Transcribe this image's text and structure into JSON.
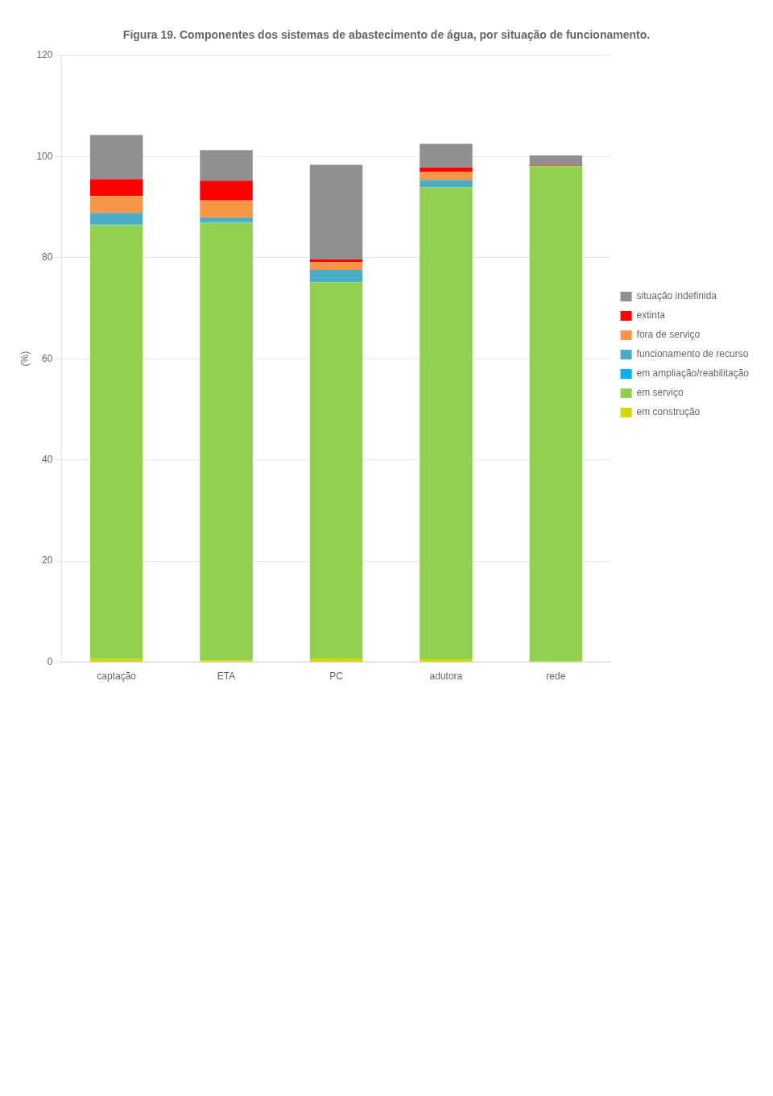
{
  "chart_data": {
    "type": "bar",
    "title": "Figura 19. Componentes dos sistemas de abastecimento de água, por situação de funcionamento.",
    "y_label": "(%)",
    "categories": [
      "captação",
      "ETA",
      "PC",
      "adutora",
      "rede"
    ],
    "series": [
      {
        "name": "em construção",
        "color": "#d4d800",
        "values": [
          0.627,
          0.356,
          0.733,
          0.573,
          0.135
        ]
      },
      {
        "name": "em serviço",
        "color": "#92d050",
        "values": [
          85.84,
          86.52,
          74.42,
          93.32,
          97.97
        ]
      },
      {
        "name": "em ampliação/reabilitação",
        "color": "#00b0f0",
        "values": [
          0.108,
          0.178,
          0.156,
          0.068,
          0.012
        ]
      },
      {
        "name": "funcionamento de recurso",
        "color": "#4bacc6",
        "values": [
          2.272,
          0.889,
          2.274,
          1.429,
          0.024
        ]
      },
      {
        "name": "fora de serviço",
        "color": "#f79646",
        "values": [
          3.331,
          3.383,
          1.517,
          1.634,
          0.024
        ]
      },
      {
        "name": "extinta",
        "color": "#ff0000",
        "values": [
          3.35,
          3.906,
          0.526,
          0.82,
          0.121
        ]
      },
      {
        "name": "situação indefinida",
        "color": "#909090",
        "values": [
          8.723,
          6.046,
          18.737,
          4.678,
          1.937
        ]
      }
    ],
    "stacked": true,
    "ylim": [
      0,
      120
    ],
    "yticks": [
      0,
      20,
      40,
      60,
      80,
      100,
      120
    ],
    "grid": "y",
    "legend": "right"
  }
}
